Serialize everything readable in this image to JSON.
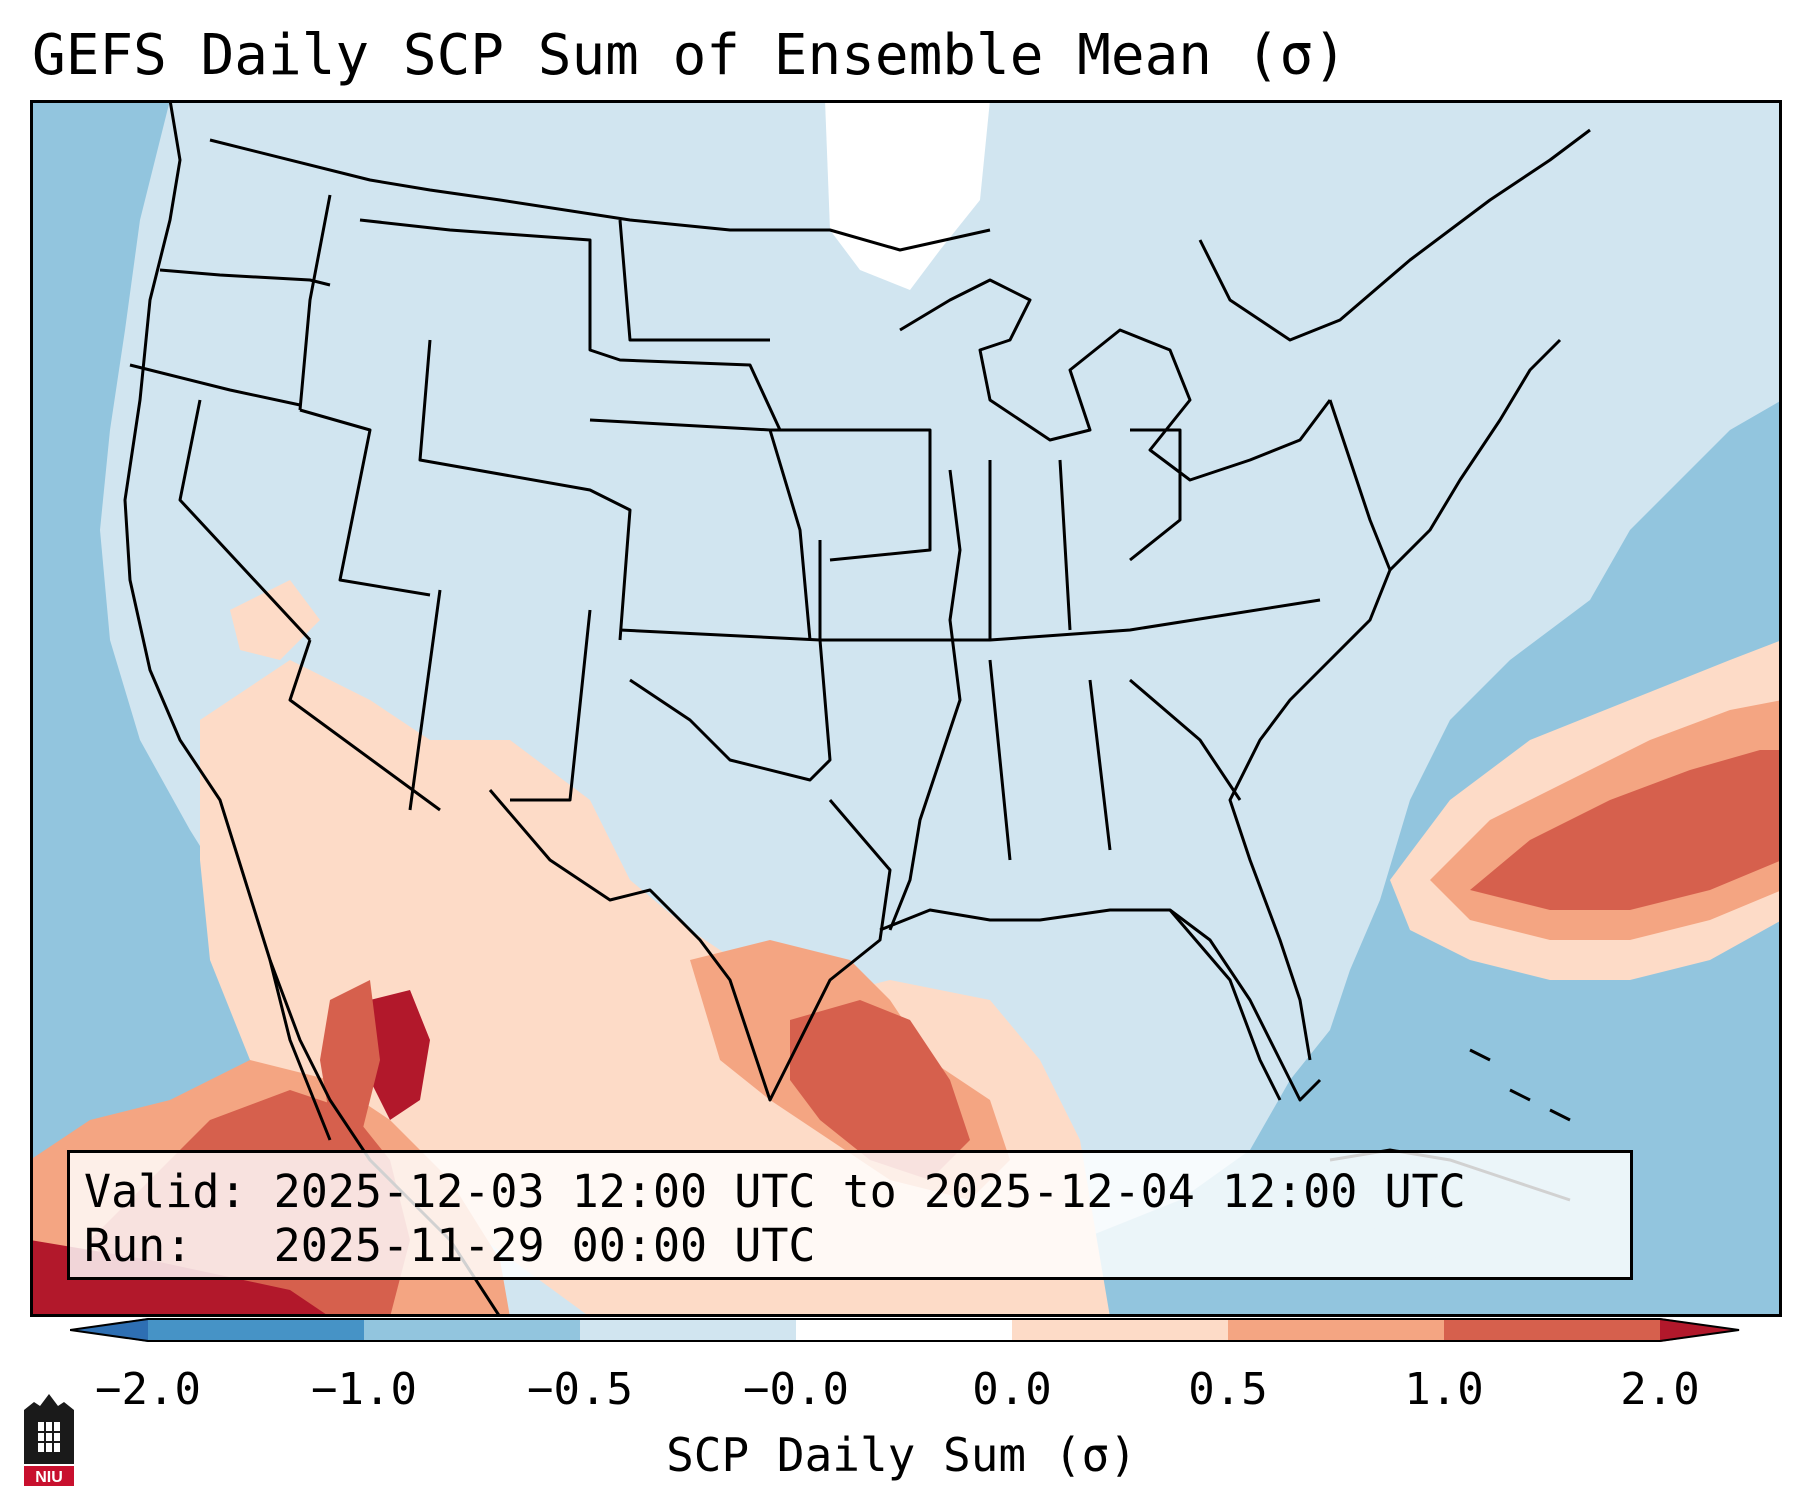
{
  "title": "GEFS Daily SCP Sum of Ensemble Mean (σ)",
  "info": {
    "valid_label": "Valid:",
    "valid_value": "2025-12-03 12:00 UTC to 2025-12-04 12:00 UTC",
    "run_label": "Run:",
    "run_value": "2025-11-29 00:00 UTC"
  },
  "colorbar": {
    "label": "SCP Daily Sum (σ)",
    "ticks": [
      "−2.0",
      "−1.0",
      "−0.5",
      "−0.0",
      "0.0",
      "0.5",
      "1.0",
      "2.0"
    ],
    "colors": [
      "#2e6fb3",
      "#4693c6",
      "#92c5de",
      "#d1e5f0",
      "#fddbc7",
      "#f4a582",
      "#d6604d",
      "#b2182b"
    ],
    "extend": "both"
  },
  "map": {
    "projection": "Lambert Conformal (CONUS)",
    "ocean_color": "#92c5de",
    "land_color": "#d1e5f0",
    "no_signal_color": "#ffffff"
  },
  "logo": {
    "text": "NIU"
  },
  "icons": {
    "logo": "niu-seal-icon"
  }
}
